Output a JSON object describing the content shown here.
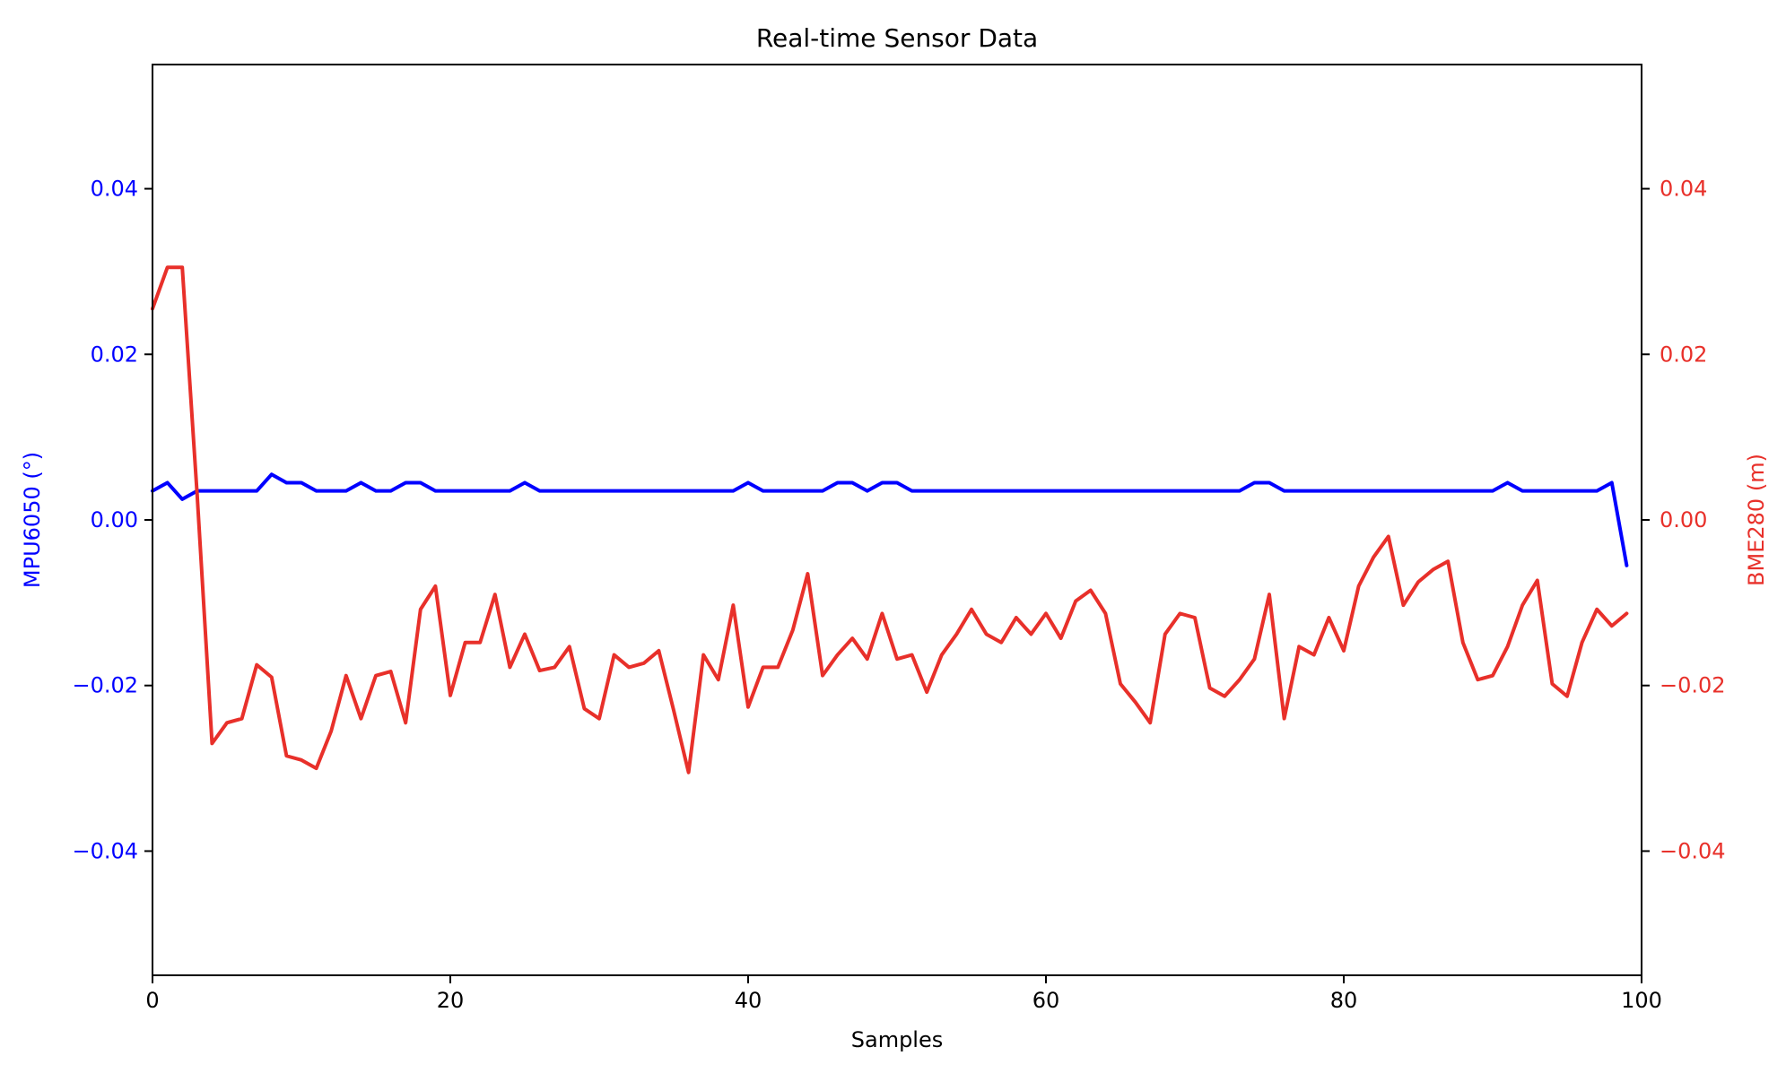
{
  "chart_data": {
    "type": "line",
    "title": "Real-time Sensor Data",
    "xlabel": "Samples",
    "ylabel_left": "MPU6050 (°)",
    "ylabel_right": "BME280 (m)",
    "xlim": [
      0,
      100
    ],
    "ylim_left": [
      -0.055,
      0.055
    ],
    "ylim_right": [
      -0.055,
      0.055
    ],
    "x_ticks": [
      0,
      20,
      40,
      60,
      80,
      100
    ],
    "x_tick_labels": [
      "0",
      "20",
      "40",
      "60",
      "80",
      "100"
    ],
    "y_ticks": [
      -0.04,
      -0.02,
      0.0,
      0.02,
      0.04
    ],
    "y_tick_labels_left": [
      "−0.04",
      "−0.02",
      "0.00",
      "0.02",
      "0.04"
    ],
    "y_tick_labels_right": [
      "−0.04",
      "−0.02",
      "0.00",
      "0.02",
      "0.04"
    ],
    "grid": false,
    "legend": "none",
    "colors": {
      "mpu6050": "#0000ff",
      "bme280": "#e8302a",
      "axes": "#000000"
    },
    "x": [
      0,
      1,
      2,
      3,
      4,
      5,
      6,
      7,
      8,
      9,
      10,
      11,
      12,
      13,
      14,
      15,
      16,
      17,
      18,
      19,
      20,
      21,
      22,
      23,
      24,
      25,
      26,
      27,
      28,
      29,
      30,
      31,
      32,
      33,
      34,
      35,
      36,
      37,
      38,
      39,
      40,
      41,
      42,
      43,
      44,
      45,
      46,
      47,
      48,
      49,
      50,
      51,
      52,
      53,
      54,
      55,
      56,
      57,
      58,
      59,
      60,
      61,
      62,
      63,
      64,
      65,
      66,
      67,
      68,
      69,
      70,
      71,
      72,
      73,
      74,
      75,
      76,
      77,
      78,
      79,
      80,
      81,
      82,
      83,
      84,
      85,
      86,
      87,
      88,
      89,
      90,
      91,
      92,
      93,
      94,
      95,
      96,
      97,
      98,
      99
    ],
    "series": [
      {
        "name": "MPU6050",
        "axis": "left",
        "values": [
          0.0035,
          0.0045,
          0.0025,
          0.0035,
          0.0035,
          0.0035,
          0.0035,
          0.0035,
          0.0055,
          0.0045,
          0.0045,
          0.0035,
          0.0035,
          0.0035,
          0.0045,
          0.0035,
          0.0035,
          0.0045,
          0.0045,
          0.0035,
          0.0035,
          0.0035,
          0.0035,
          0.0035,
          0.0035,
          0.0045,
          0.0035,
          0.0035,
          0.0035,
          0.0035,
          0.0035,
          0.0035,
          0.0035,
          0.0035,
          0.0035,
          0.0035,
          0.0035,
          0.0035,
          0.0035,
          0.0035,
          0.0045,
          0.0035,
          0.0035,
          0.0035,
          0.0035,
          0.0035,
          0.0045,
          0.0045,
          0.0035,
          0.0045,
          0.0045,
          0.0035,
          0.0035,
          0.0035,
          0.0035,
          0.0035,
          0.0035,
          0.0035,
          0.0035,
          0.0035,
          0.0035,
          0.0035,
          0.0035,
          0.0035,
          0.0035,
          0.0035,
          0.0035,
          0.0035,
          0.0035,
          0.0035,
          0.0035,
          0.0035,
          0.0035,
          0.0035,
          0.0045,
          0.0045,
          0.0035,
          0.0035,
          0.0035,
          0.0035,
          0.0035,
          0.0035,
          0.0035,
          0.0035,
          0.0035,
          0.0035,
          0.0035,
          0.0035,
          0.0035,
          0.0035,
          0.0035,
          0.0045,
          0.0035,
          0.0035,
          0.0035,
          0.0035,
          0.0035,
          0.0035,
          0.0045,
          -0.0055
        ]
      },
      {
        "name": "BME280",
        "axis": "right",
        "values": [
          0.0255,
          0.0305,
          0.0305,
          0.003,
          -0.027,
          -0.0245,
          -0.024,
          -0.0175,
          -0.019,
          -0.0285,
          -0.029,
          -0.03,
          -0.0255,
          -0.0188,
          -0.024,
          -0.0188,
          -0.0183,
          -0.0245,
          -0.0108,
          -0.008,
          -0.0212,
          -0.0148,
          -0.0148,
          -0.009,
          -0.0178,
          -0.0138,
          -0.0182,
          -0.0178,
          -0.0153,
          -0.0228,
          -0.024,
          -0.0163,
          -0.0178,
          -0.0173,
          -0.0158,
          -0.023,
          -0.0305,
          -0.0163,
          -0.0193,
          -0.0103,
          -0.0226,
          -0.0178,
          -0.0178,
          -0.0133,
          -0.0065,
          -0.0188,
          -0.0163,
          -0.0143,
          -0.0168,
          -0.0113,
          -0.0168,
          -0.0163,
          -0.0208,
          -0.0163,
          -0.0138,
          -0.0108,
          -0.0138,
          -0.0148,
          -0.0118,
          -0.0138,
          -0.0113,
          -0.0143,
          -0.0098,
          -0.0085,
          -0.0113,
          -0.0198,
          -0.022,
          -0.0245,
          -0.0138,
          -0.0113,
          -0.0118,
          -0.0203,
          -0.0213,
          -0.0193,
          -0.0168,
          -0.009,
          -0.024,
          -0.0153,
          -0.0163,
          -0.0118,
          -0.0158,
          -0.008,
          -0.0045,
          -0.002,
          -0.0103,
          -0.0075,
          -0.006,
          -0.005,
          -0.0148,
          -0.0193,
          -0.0188,
          -0.0153,
          -0.0103,
          -0.0073,
          -0.0198,
          -0.0213,
          -0.0148,
          -0.0108,
          -0.0128,
          -0.0113
        ]
      }
    ]
  }
}
